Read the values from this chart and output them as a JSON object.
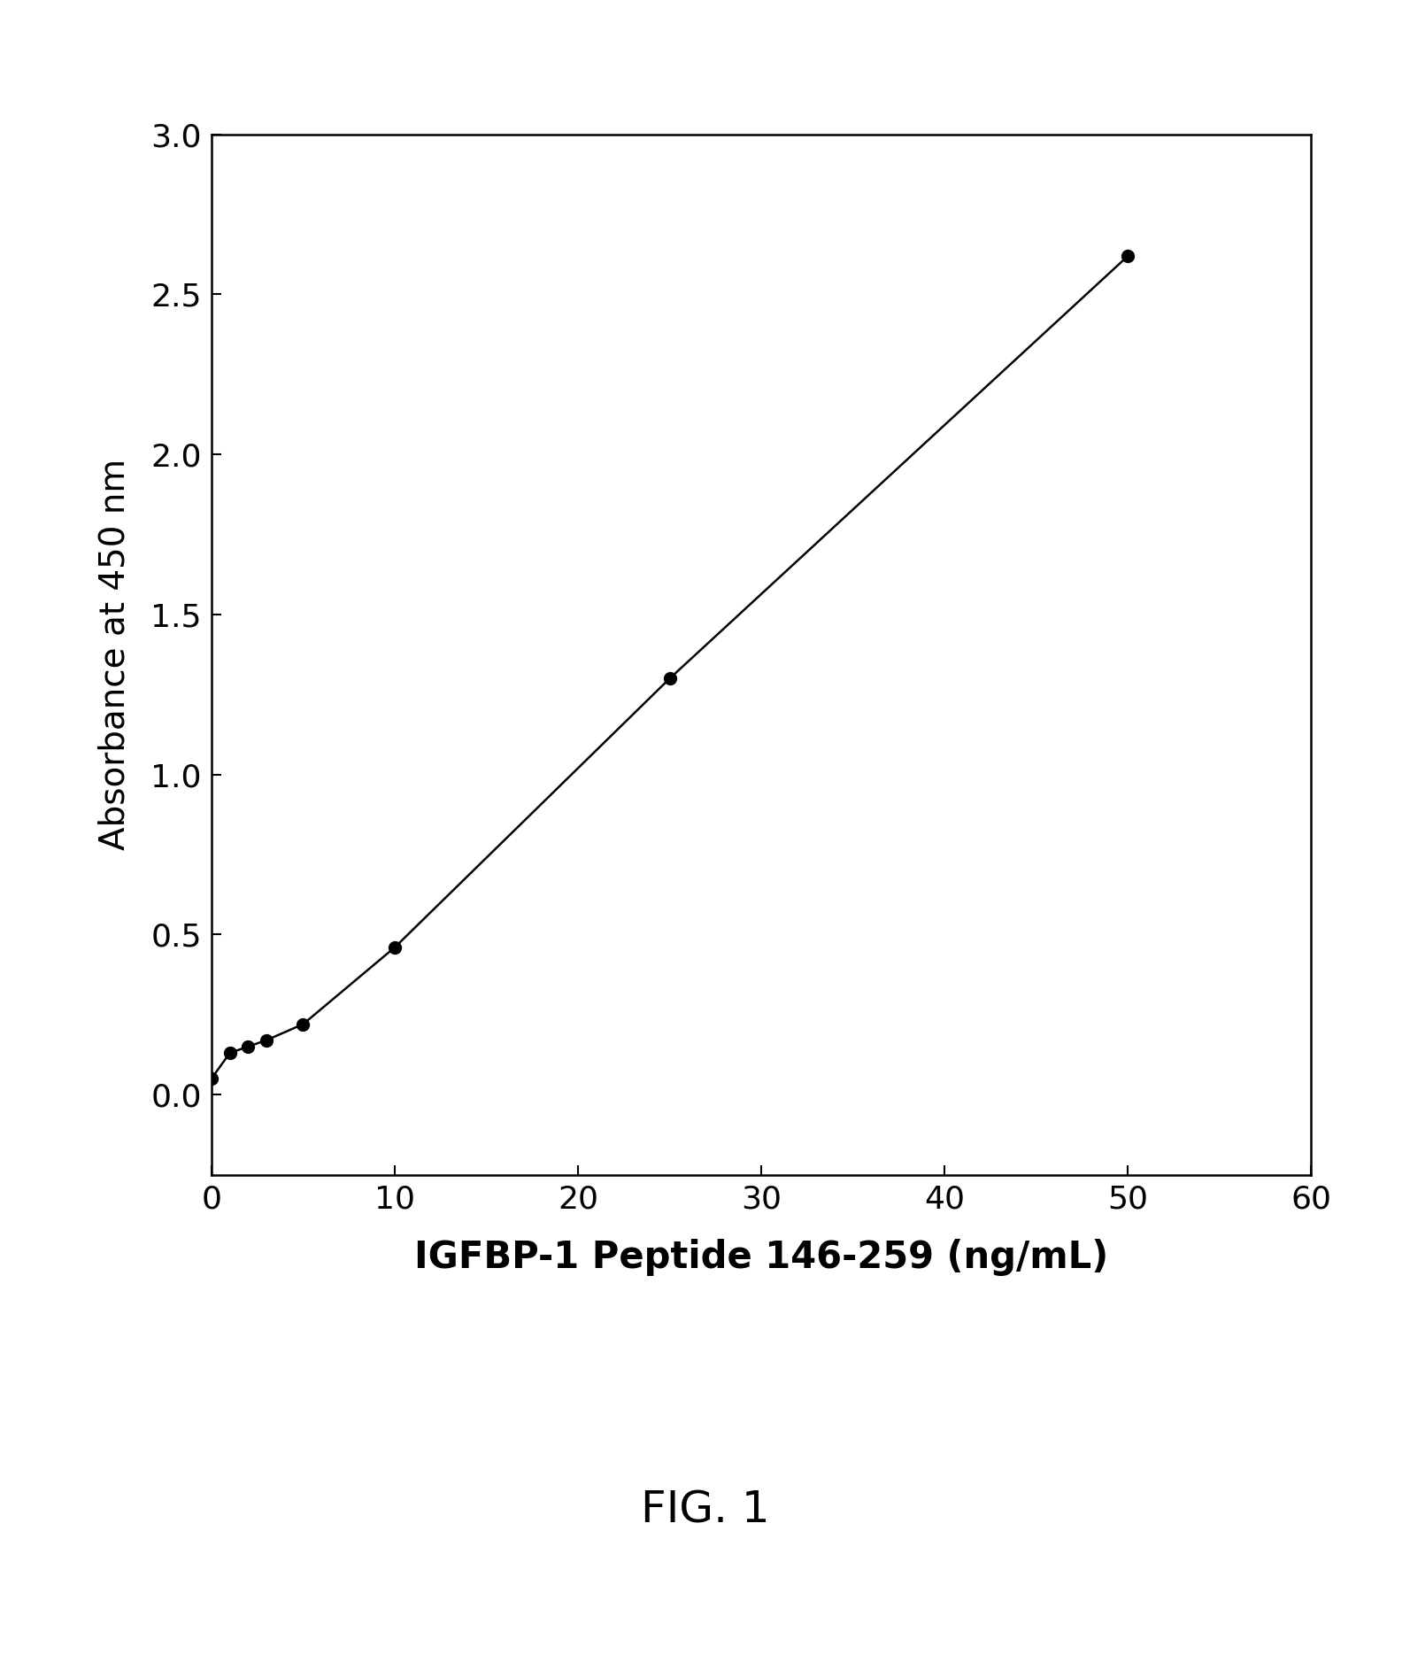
{
  "x": [
    0,
    1,
    2,
    3,
    5,
    10,
    25,
    50
  ],
  "y": [
    0.05,
    0.13,
    0.15,
    0.17,
    0.22,
    0.46,
    1.3,
    2.62
  ],
  "xlabel": "IGFBP-1 Peptide 146-259 (ng/mL)",
  "ylabel": "Absorbance at 450 nm",
  "caption": "FIG. 1",
  "xlim": [
    0,
    60
  ],
  "ylim": [
    -0.25,
    3.0
  ],
  "xticks": [
    0,
    10,
    20,
    30,
    40,
    50,
    60
  ],
  "yticks": [
    0.0,
    0.5,
    1.0,
    1.5,
    2.0,
    2.5,
    3.0
  ],
  "marker_color": "#000000",
  "line_color": "#000000",
  "bg_color": "#ffffff",
  "marker_size": 10,
  "line_width": 1.8,
  "ylabel_fontsize": 28,
  "xlabel_fontsize": 30,
  "tick_fontsize": 26,
  "caption_fontsize": 36,
  "xlabel_fontweight": "bold",
  "fig_width": 15.93,
  "fig_height": 18.95,
  "dpi": 100
}
